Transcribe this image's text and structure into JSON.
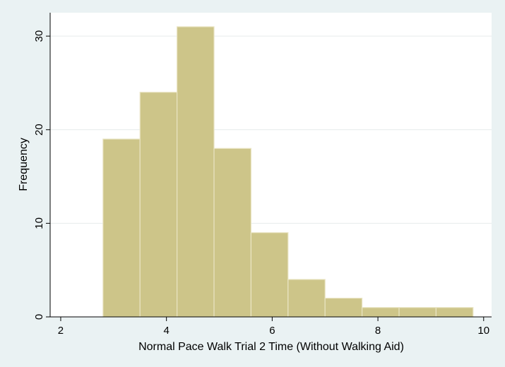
{
  "chart_data": {
    "type": "bar",
    "subtype": "histogram",
    "xlabel": "Normal Pace Walk Trial 2 Time (Without Walking Aid)",
    "ylabel": "Frequency",
    "xlim": [
      1.8,
      10.15
    ],
    "ylim": [
      0,
      32.5
    ],
    "xticks": [
      2,
      4,
      6,
      8,
      10
    ],
    "yticks": [
      0,
      10,
      20,
      30
    ],
    "grid": true,
    "bins": [
      {
        "start": 2.8,
        "end": 3.5,
        "value": 19
      },
      {
        "start": 3.5,
        "end": 4.2,
        "value": 24
      },
      {
        "start": 4.2,
        "end": 4.9,
        "value": 31
      },
      {
        "start": 4.9,
        "end": 5.6,
        "value": 18
      },
      {
        "start": 5.6,
        "end": 6.3,
        "value": 9
      },
      {
        "start": 6.3,
        "end": 7.0,
        "value": 4
      },
      {
        "start": 7.0,
        "end": 7.7,
        "value": 2
      },
      {
        "start": 7.7,
        "end": 8.4,
        "value": 1
      },
      {
        "start": 8.4,
        "end": 9.1,
        "value": 1
      },
      {
        "start": 9.1,
        "end": 9.8,
        "value": 1
      }
    ],
    "colors": {
      "background": "#eaf2f3",
      "plot_area": "#ffffff",
      "bar_fill": "#cdc589",
      "bar_stroke": "#e9e4c3",
      "grid": "#e6ecec",
      "axis": "#000000"
    }
  }
}
